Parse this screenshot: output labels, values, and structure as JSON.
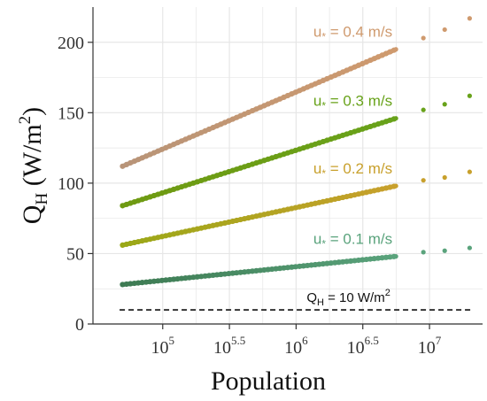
{
  "chart_data": {
    "type": "scatter",
    "xlabel": "Population",
    "ylabel": {
      "main": "Q",
      "sub": "H",
      "unit": "(W/m",
      "unit_sup": "2",
      "unit_close": ")"
    },
    "xscale": "log10",
    "xlim": [
      30000,
      25000000
    ],
    "ylim": [
      0,
      225
    ],
    "x_ticks": [
      {
        "value": 100000,
        "base": "10",
        "exp": "5"
      },
      {
        "value": 316228,
        "base": "10",
        "exp": "5.5"
      },
      {
        "value": 1000000,
        "base": "10",
        "exp": "6"
      },
      {
        "value": 3162278,
        "base": "10",
        "exp": "6.5"
      },
      {
        "value": 10000000,
        "base": "10",
        "exp": "7"
      }
    ],
    "y_ticks": [
      0,
      50,
      100,
      150,
      200
    ],
    "grid": true,
    "line_range": [
      50000,
      5600000
    ],
    "extra_points_x": [
      9000000,
      13000000,
      20000000
    ],
    "series": [
      {
        "label_main": "u",
        "label_sub": "*",
        "label_rest": " = 0.1 m/s",
        "y_start": 28,
        "y_end": 48,
        "extra_y": [
          51,
          52,
          54
        ],
        "color_start": "#3d7a52",
        "color_end": "#5aa37c"
      },
      {
        "label_main": "u",
        "label_sub": "*",
        "label_rest": " = 0.2 m/s",
        "y_start": 56,
        "y_end": 98,
        "extra_y": [
          102,
          104,
          108
        ],
        "color_start": "#9aa817",
        "color_end": "#c8a02c"
      },
      {
        "label_main": "u",
        "label_sub": "*",
        "label_rest": " = 0.3 m/s",
        "y_start": 84,
        "y_end": 146,
        "extra_y": [
          152,
          156,
          162
        ],
        "color_start": "#6f9a12",
        "color_end": "#68a21a"
      },
      {
        "label_main": "u",
        "label_sub": "*",
        "label_rest": " = 0.4 m/s",
        "y_start": 112,
        "y_end": 195,
        "extra_y": [
          203,
          209,
          217
        ],
        "color_start": "#b89478",
        "color_end": "#cf9a6e"
      }
    ],
    "threshold": {
      "y": 10,
      "label_main": "Q",
      "label_sub": "H",
      "label_rest": " = 10 W/m",
      "label_sup": "2"
    }
  },
  "colors": {
    "grid": "#e6e6e6",
    "axis": "#333333",
    "threshold": "#111111"
  }
}
